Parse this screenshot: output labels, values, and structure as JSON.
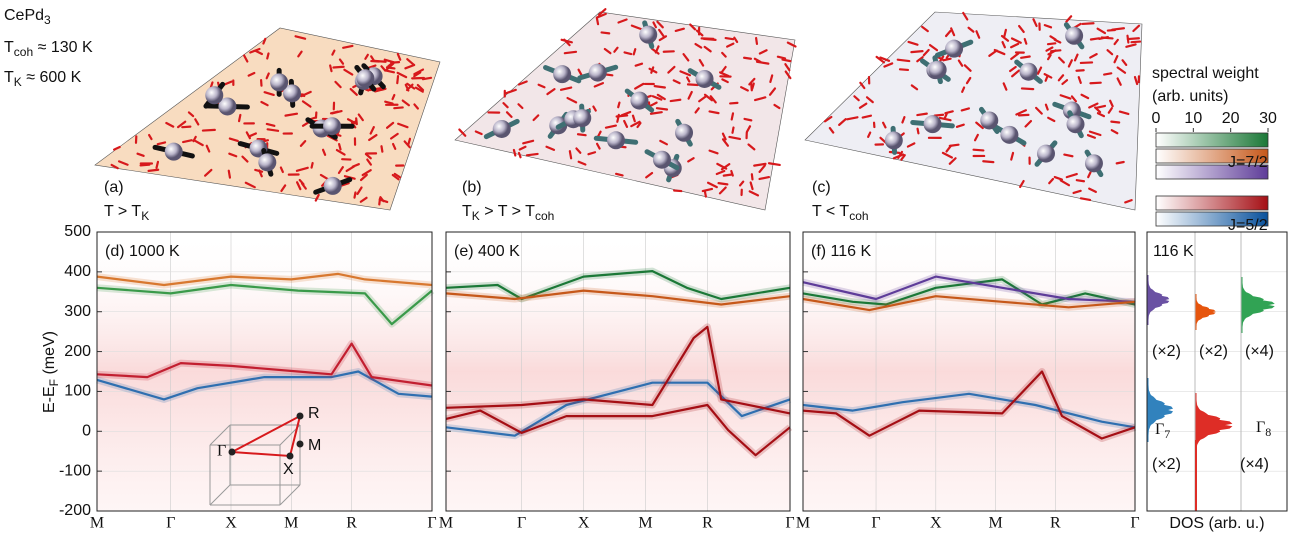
{
  "material": {
    "text": "CePd",
    "sub": "3"
  },
  "tcoh": {
    "text": "T",
    "sub": "coh",
    "rest": " ≈ 130 K"
  },
  "tk": {
    "text": "T",
    "sub": "K",
    "rest": " ≈ 600 K"
  },
  "top_panels": [
    {
      "label": "(a)",
      "condition": [
        {
          "text": "T > T",
          "sub": "K"
        }
      ]
    },
    {
      "label": "(b)",
      "condition": [
        {
          "text": "T",
          "sub": "K"
        },
        {
          "text": " > T > T",
          "sub": "coh"
        }
      ]
    },
    {
      "label": "(c)",
      "condition": [
        {
          "text": "T < T",
          "sub": "coh"
        }
      ]
    }
  ],
  "legend": {
    "title": "spectral weight",
    "units": "(arb. units)",
    "ticks": [
      0,
      10,
      20,
      30
    ],
    "j72": "J=7/2",
    "j52": "J=5/2"
  },
  "bands": {
    "ylabel": {
      "text": "E-E",
      "sub": "F",
      "rest": " (meV)"
    },
    "ylim": [
      -200,
      500
    ],
    "yticks": [
      500,
      400,
      300,
      200,
      100,
      0,
      -100,
      -200
    ],
    "kpoints": [
      "M",
      "Γ",
      "X",
      "M",
      "R",
      "Γ"
    ],
    "panels": [
      {
        "label": "(d) 1000 K"
      },
      {
        "label": "(e) 400 K"
      },
      {
        "label": "(f) 116 K"
      }
    ],
    "bz": [
      "R",
      "Γ",
      "M",
      "X"
    ]
  },
  "dos": {
    "label": "116 K",
    "xlabel": "DOS (arb. u.)",
    "multipliers": [
      "(×2)",
      "(×2)",
      "(×4)",
      "(×2)",
      "(×4)"
    ],
    "gamma7": {
      "text": "Γ",
      "sub": "7"
    },
    "gamma8": {
      "text": "Γ",
      "sub": "8"
    }
  }
}
